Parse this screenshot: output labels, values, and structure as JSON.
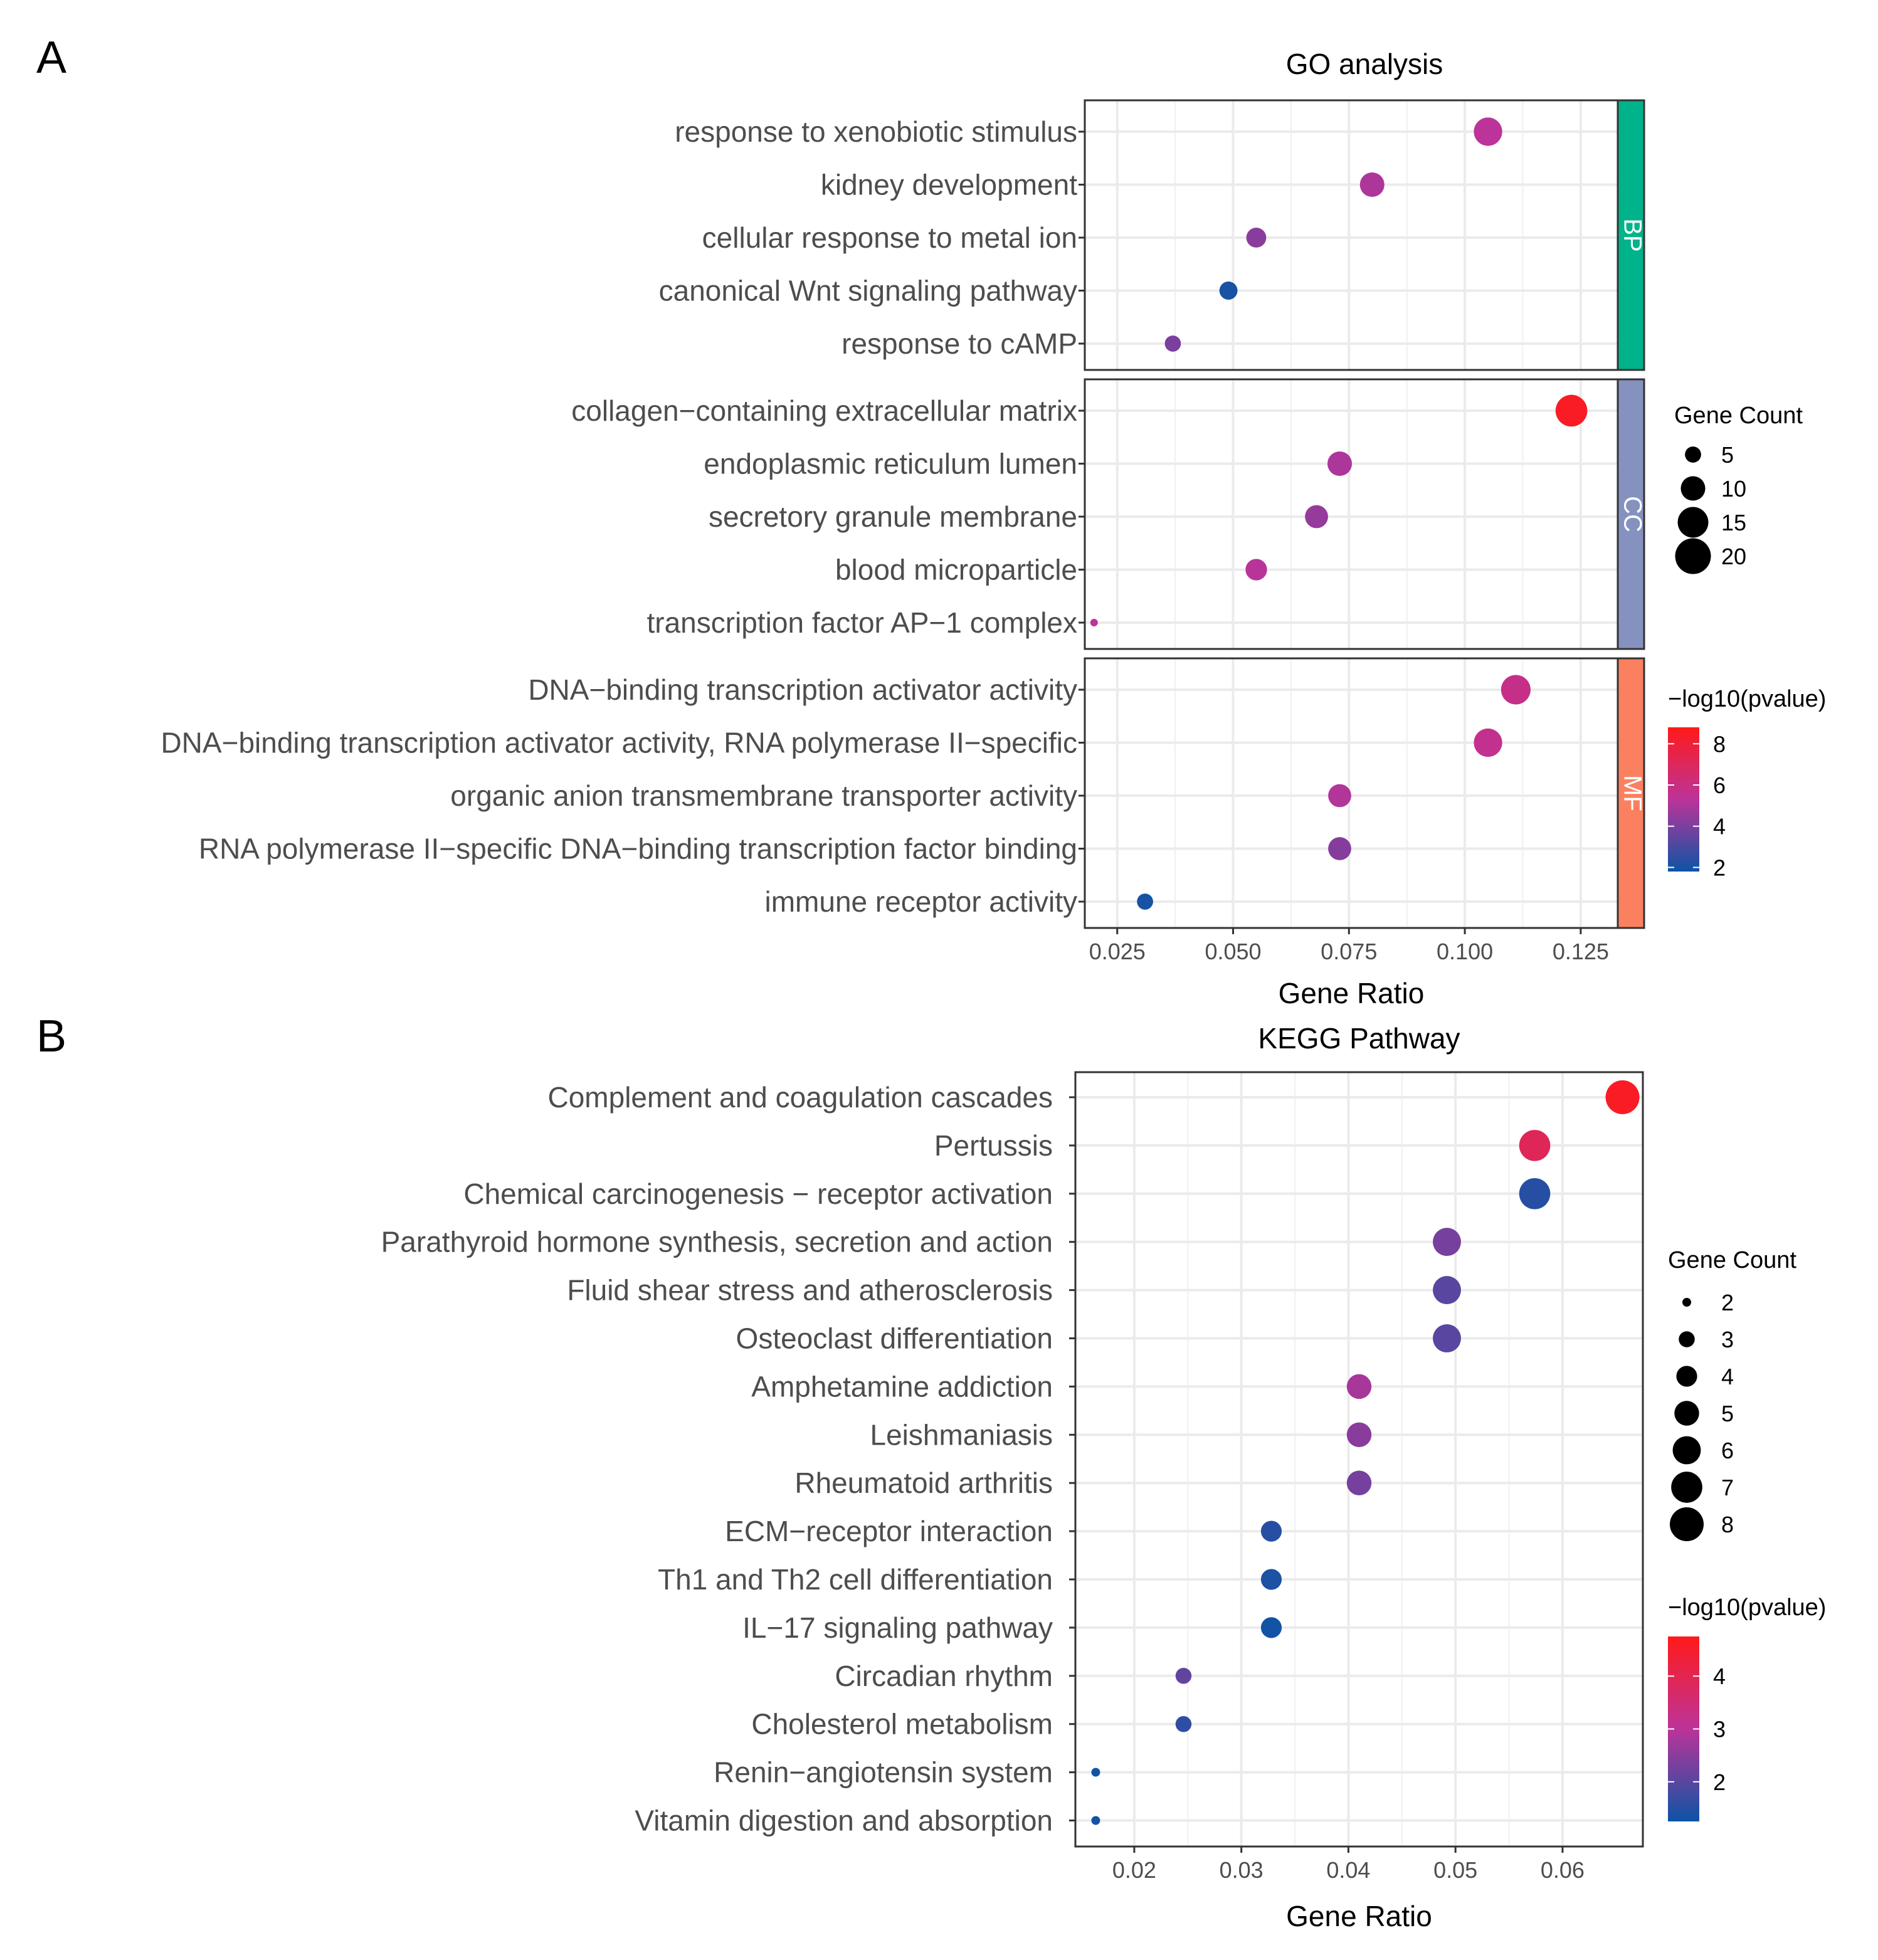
{
  "chart_data": [
    {
      "panel": "A",
      "type": "scatter",
      "title": "GO analysis",
      "xlabel": "Gene Ratio",
      "ylabel": "",
      "xlim": [
        0.018,
        0.133
      ],
      "xticks": [
        0.025,
        0.05,
        0.075,
        0.1,
        0.125
      ],
      "xtick_labels": [
        "0.025",
        "0.050",
        "0.075",
        "0.100",
        "0.125"
      ],
      "grid": true,
      "facets": [
        {
          "label": "BP",
          "strip_color": "#00b38a",
          "terms": [
            {
              "name": "response to xenobiotic stimulus",
              "ratio": 0.105,
              "count": 13,
              "log10p": 5.3
            },
            {
              "name": "kidney development",
              "ratio": 0.08,
              "count": 10,
              "log10p": 5.0
            },
            {
              "name": "cellular response to metal ion",
              "ratio": 0.055,
              "count": 7,
              "log10p": 4.3
            },
            {
              "name": "canonical Wnt signaling pathway",
              "ratio": 0.049,
              "count": 6,
              "log10p": 2.0
            },
            {
              "name": "response to cAMP",
              "ratio": 0.037,
              "count": 5,
              "log10p": 4.0
            }
          ]
        },
        {
          "label": "CC",
          "strip_color": "#8592c0",
          "terms": [
            {
              "name": "collagen−containing extracellular matrix",
              "ratio": 0.123,
              "count": 16,
              "log10p": 8.5
            },
            {
              "name": "endoplasmic reticulum lumen",
              "ratio": 0.073,
              "count": 10,
              "log10p": 5.0
            },
            {
              "name": "secretory granule membrane",
              "ratio": 0.068,
              "count": 9,
              "log10p": 4.5
            },
            {
              "name": "blood microparticle",
              "ratio": 0.055,
              "count": 8,
              "log10p": 5.2
            },
            {
              "name": "transcription factor AP−1 complex",
              "ratio": 0.02,
              "count": 2,
              "log10p": 5.3
            }
          ]
        },
        {
          "label": "MF",
          "strip_color": "#fb8060",
          "terms": [
            {
              "name": "DNA−binding transcription activator activity",
              "ratio": 0.111,
              "count": 14,
              "log10p": 5.8
            },
            {
              "name": "DNA−binding transcription activator activity, RNA polymerase II−specific",
              "ratio": 0.105,
              "count": 13,
              "log10p": 5.6
            },
            {
              "name": "organic anion transmembrane transporter activity",
              "ratio": 0.073,
              "count": 9,
              "log10p": 5.1
            },
            {
              "name": "RNA polymerase II−specific DNA−binding transcription factor binding",
              "ratio": 0.073,
              "count": 9,
              "log10p": 4.2
            },
            {
              "name": "immune receptor activity",
              "ratio": 0.031,
              "count": 5,
              "log10p": 2.0
            }
          ]
        }
      ],
      "size_legend": {
        "title": "Gene Count",
        "values": [
          5,
          10,
          15,
          20
        ]
      },
      "color_legend": {
        "title": "−log10(pvalue)",
        "ticks": [
          2,
          4,
          6,
          8
        ],
        "range": [
          1.8,
          8.8
        ],
        "low": "#0d54a5",
        "mid": "#bc3399",
        "high": "#ff1a1a"
      }
    },
    {
      "panel": "B",
      "type": "scatter",
      "title": "KEGG Pathway",
      "xlabel": "Gene Ratio",
      "ylabel": "",
      "xlim": [
        0.0145,
        0.0675
      ],
      "xticks": [
        0.02,
        0.03,
        0.04,
        0.05,
        0.06
      ],
      "xtick_labels": [
        "0.02",
        "0.03",
        "0.04",
        "0.05",
        "0.06"
      ],
      "grid": true,
      "terms": [
        {
          "name": "Complement and coagulation cascades",
          "ratio": 0.0656,
          "count": 8,
          "log10p": 4.6
        },
        {
          "name": "Pertussis",
          "ratio": 0.0574,
          "count": 7,
          "log10p": 3.9
        },
        {
          "name": "Chemical carcinogenesis − receptor activation",
          "ratio": 0.0574,
          "count": 7,
          "log10p": 1.5
        },
        {
          "name": "Parathyroid hormone synthesis, secretion and action",
          "ratio": 0.0492,
          "count": 6,
          "log10p": 2.3
        },
        {
          "name": "Fluid shear stress and atherosclerosis",
          "ratio": 0.0492,
          "count": 6,
          "log10p": 2.0
        },
        {
          "name": "Osteoclast differentiation",
          "ratio": 0.0492,
          "count": 6,
          "log10p": 2.0
        },
        {
          "name": "Amphetamine addiction",
          "ratio": 0.041,
          "count": 5,
          "log10p": 2.8
        },
        {
          "name": "Leishmaniasis",
          "ratio": 0.041,
          "count": 5,
          "log10p": 2.5
        },
        {
          "name": "Rheumatoid arthritis",
          "ratio": 0.041,
          "count": 5,
          "log10p": 2.3
        },
        {
          "name": "ECM−receptor interaction",
          "ratio": 0.0328,
          "count": 4,
          "log10p": 1.5
        },
        {
          "name": "Th1 and Th2 cell differentiation",
          "ratio": 0.0328,
          "count": 4,
          "log10p": 1.4
        },
        {
          "name": "IL−17 signaling pathway",
          "ratio": 0.0328,
          "count": 4,
          "log10p": 1.3
        },
        {
          "name": "Circadian rhythm",
          "ratio": 0.0246,
          "count": 3,
          "log10p": 2.1
        },
        {
          "name": "Cholesterol metabolism",
          "ratio": 0.0246,
          "count": 3,
          "log10p": 1.6
        },
        {
          "name": "Renin−angiotensin system",
          "ratio": 0.0164,
          "count": 2,
          "log10p": 1.3
        },
        {
          "name": "Vitamin digestion and absorption",
          "ratio": 0.0164,
          "count": 2,
          "log10p": 1.3
        }
      ],
      "size_legend": {
        "title": "Gene Count",
        "values": [
          2,
          3,
          4,
          5,
          6,
          7,
          8
        ]
      },
      "color_legend": {
        "title": "−log10(pvalue)",
        "ticks": [
          2,
          3,
          4
        ],
        "range": [
          1.25,
          4.75
        ],
        "low": "#0d54a5",
        "mid": "#bc3399",
        "high": "#ff1a1a"
      }
    }
  ],
  "panel_labels": [
    "A",
    "B"
  ]
}
